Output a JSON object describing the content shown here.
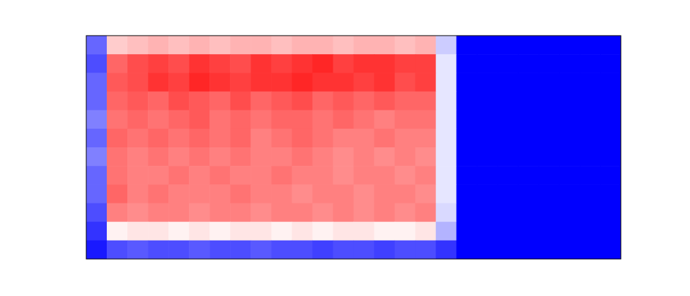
{
  "chart_data": {
    "type": "heatmap",
    "tick_labels": false,
    "zlim": [
      -1,
      1
    ],
    "cells": [
      [
        -0.6,
        0.2,
        0.25,
        0.3,
        0.25,
        0.3,
        0.25,
        0.3,
        0.3,
        0.25,
        0.3,
        0.3,
        0.25,
        0.3,
        0.3,
        0.25,
        0.3,
        -0.2,
        -1,
        -1,
        -1,
        -1,
        -1,
        -1,
        -1,
        -1
      ],
      [
        -0.7,
        0.6,
        0.7,
        0.75,
        0.7,
        0.8,
        0.75,
        0.7,
        0.8,
        0.75,
        0.8,
        0.85,
        0.75,
        0.8,
        0.8,
        0.75,
        0.75,
        -0.1,
        -1,
        -1,
        -1,
        -1,
        -1,
        -1,
        -1,
        -1
      ],
      [
        -0.6,
        0.65,
        0.7,
        0.8,
        0.75,
        0.85,
        0.8,
        0.75,
        0.8,
        0.8,
        0.85,
        0.8,
        0.8,
        0.75,
        0.8,
        0.7,
        0.75,
        -0.1,
        -1,
        -1,
        -1,
        -1,
        -1,
        -1,
        -1,
        -1
      ],
      [
        -0.6,
        0.6,
        0.65,
        0.6,
        0.7,
        0.65,
        0.6,
        0.7,
        0.6,
        0.65,
        0.7,
        0.6,
        0.65,
        0.6,
        0.65,
        0.6,
        0.6,
        -0.1,
        -1,
        -1,
        -1,
        -1,
        -1,
        -1,
        -1,
        -1
      ],
      [
        -0.5,
        0.55,
        0.6,
        0.55,
        0.6,
        0.65,
        0.55,
        0.6,
        0.55,
        0.6,
        0.6,
        0.55,
        0.6,
        0.55,
        0.5,
        0.55,
        0.55,
        -0.1,
        -1,
        -1,
        -1,
        -1,
        -1,
        -1,
        -1,
        -1
      ],
      [
        -0.6,
        0.6,
        0.55,
        0.6,
        0.55,
        0.6,
        0.55,
        0.6,
        0.5,
        0.55,
        0.6,
        0.55,
        0.5,
        0.5,
        0.55,
        0.5,
        0.5,
        -0.1,
        -1,
        -1,
        -1,
        -1,
        -1,
        -1,
        -1,
        -1
      ],
      [
        -0.5,
        0.55,
        0.5,
        0.55,
        0.5,
        0.55,
        0.5,
        0.55,
        0.5,
        0.5,
        0.55,
        0.5,
        0.45,
        0.5,
        0.45,
        0.5,
        0.45,
        -0.1,
        -1,
        -1,
        -1,
        -1,
        -1,
        -1,
        -1,
        -1
      ],
      [
        -0.6,
        0.55,
        0.5,
        0.5,
        0.55,
        0.5,
        0.55,
        0.5,
        0.5,
        0.55,
        0.5,
        0.5,
        0.45,
        0.5,
        0.5,
        0.45,
        0.5,
        -0.1,
        -1,
        -1,
        -1,
        -1,
        -1,
        -1,
        -1,
        -1
      ],
      [
        -0.6,
        0.6,
        0.5,
        0.55,
        0.5,
        0.5,
        0.5,
        0.55,
        0.5,
        0.5,
        0.45,
        0.5,
        0.5,
        0.45,
        0.5,
        0.5,
        0.45,
        -0.1,
        -1,
        -1,
        -1,
        -1,
        -1,
        -1,
        -1,
        -1
      ],
      [
        -0.7,
        0.5,
        0.45,
        0.5,
        0.5,
        0.45,
        0.5,
        0.5,
        0.45,
        0.5,
        0.5,
        0.45,
        0.5,
        0.45,
        0.5,
        0.45,
        0.5,
        -0.15,
        -1,
        -1,
        -1,
        -1,
        -1,
        -1,
        -1,
        -1
      ],
      [
        -0.8,
        0.05,
        0.1,
        0.1,
        0.05,
        0.1,
        0.05,
        0.1,
        0.1,
        0.05,
        0.1,
        0.05,
        0.1,
        0.1,
        0.05,
        0.05,
        0.1,
        -0.3,
        -1,
        -1,
        -1,
        -1,
        -1,
        -1,
        -1,
        -1
      ],
      [
        -0.9,
        -0.7,
        -0.65,
        -0.7,
        -0.7,
        -0.65,
        -0.7,
        -0.7,
        -0.65,
        -0.7,
        -0.7,
        -0.75,
        -0.7,
        -0.7,
        -0.75,
        -0.7,
        -0.7,
        -0.8,
        -1,
        -1,
        -1,
        -1,
        -1,
        -1,
        -1,
        -1
      ]
    ]
  }
}
